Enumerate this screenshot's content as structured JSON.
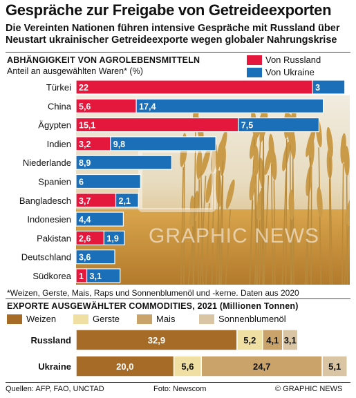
{
  "title": "Gespräche zur Freigabe von Getreideexporten",
  "subtitle": "Die Vereinten Nationen führen intensive Gespräche mit Russland über Neustart ukrainischer Getreideexporte wegen globaler Nahrungskrise",
  "watermark": "GRAPHIC NEWS",
  "chart_data": [
    {
      "type": "bar",
      "orientation": "horizontal",
      "stacked": true,
      "title": "ABHÄNGIGKEIT VON AGROLEBENSMITTELN",
      "subtitle": "Anteil an ausgewählten Waren* (%)",
      "legend_position": "top-right",
      "categories": [
        "Türkei",
        "China",
        "Ägypten",
        "Indien",
        "Niederlande",
        "Spanien",
        "Bangladesch",
        "Indonesien",
        "Pakistan",
        "Deutschland",
        "Südkorea"
      ],
      "series": [
        {
          "name": "Von Russland",
          "color": "#e4173c",
          "values": [
            22,
            5.6,
            15.1,
            3.2,
            null,
            null,
            3.7,
            null,
            2.6,
            null,
            1.0
          ],
          "labels": [
            "22",
            "5,6",
            "15,1",
            "3,2",
            "",
            "",
            "3,7",
            "",
            "2,6",
            "",
            "1"
          ]
        },
        {
          "name": "Von Ukraine",
          "color": "#1a6fb8",
          "values": [
            3,
            17.4,
            7.5,
            9.8,
            8.9,
            6,
            2.1,
            4.4,
            1.9,
            3.6,
            3.1
          ],
          "labels": [
            "3",
            "17,4",
            "7,5",
            "9,8",
            "8,9",
            "6",
            "2,1",
            "4,4",
            "1,9",
            "3,6",
            "3,1"
          ]
        }
      ],
      "footnote": "*Weizen, Gerste, Mais, Raps und Sonnenblumenöl und -kerne. Daten aus 2020"
    },
    {
      "type": "bar",
      "orientation": "horizontal",
      "stacked": true,
      "title": "EXPORTE AUSGEWÄHLTER COMMODITIES, 2021 (Millionen Tonnen)",
      "legend_position": "top",
      "categories": [
        "Russland",
        "Ukraine"
      ],
      "series": [
        {
          "name": "Weizen",
          "color": "#a56b27",
          "values": [
            32.9,
            20.0
          ],
          "labels": [
            "32,9",
            "20,0"
          ]
        },
        {
          "name": "Gerste",
          "color": "#f0dfa2",
          "values": [
            5.2,
            5.6
          ],
          "labels": [
            "5,2",
            "5,6"
          ]
        },
        {
          "name": "Mais",
          "color": "#c9a36a",
          "values": [
            4.1,
            24.7
          ],
          "labels": [
            "4,1",
            "24,7"
          ]
        },
        {
          "name": "Sonnenblumenöl",
          "color": "#d9c4a3",
          "values": [
            3.1,
            5.1
          ],
          "labels": [
            "3,1",
            "5,1"
          ]
        }
      ]
    }
  ],
  "footer": {
    "sources": "Quellen: AFP, FAO, UNCTAD",
    "photo": "Foto: Newscom",
    "copyright": "© GRAPHIC NEWS"
  },
  "colors": {
    "photo_sky": "#ece6d8",
    "photo_wheat": "#c9913a"
  }
}
